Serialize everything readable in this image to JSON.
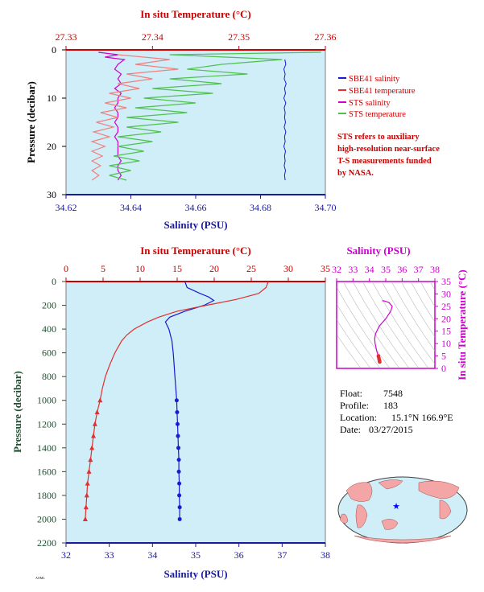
{
  "colors": {
    "plot_bg": "#cfeef8",
    "sbe_salinity": "#1a1ad0",
    "sbe_temperature": "#e03030",
    "sts_salinity": "#d000d0",
    "sts_temperature": "#50c050",
    "sts_temp_pink": "#f08080",
    "axis_red": "#cc0000",
    "axis_blue": "#1a1aa0",
    "axis_green": "#1f4f2f",
    "axis_magenta": "#cc00cc"
  },
  "chart_data": [
    {
      "id": "top",
      "type": "line",
      "top_axis_title": "In situ Temperature (°C)",
      "top_ticks": [
        "27.33",
        "27.34",
        "27.35",
        "27.36"
      ],
      "top_range": [
        27.33,
        27.36
      ],
      "bottom_axis_title": "Salinity (PSU)",
      "bottom_ticks": [
        "34.62",
        "34.64",
        "34.66",
        "34.68",
        "34.70"
      ],
      "bottom_range": [
        34.62,
        34.7
      ],
      "left_axis_title": "Pressure (decibar)",
      "left_ticks": [
        "0",
        "10",
        "20",
        "30"
      ],
      "left_range": [
        0,
        30
      ],
      "legend": [
        {
          "label": "SBE41 salinity",
          "color": "#1a1ad0"
        },
        {
          "label": "SBE41 temperature",
          "color": "#e03030"
        },
        {
          "label": "STS salinity",
          "color": "#d000d0"
        },
        {
          "label": "STS temperature",
          "color": "#50c050"
        }
      ],
      "note_lines": [
        "STS refers to auxiliary",
        "high-resolution near-surface",
        "T-S measurements funded",
        "by NASA."
      ],
      "series": [
        {
          "name": "SBE41 salinity",
          "axis": "salinity",
          "pressure": [
            2,
            3,
            4,
            5,
            6,
            7,
            8,
            9,
            10,
            11,
            12,
            13,
            14,
            15,
            16,
            17,
            18,
            19,
            20,
            21,
            22,
            23,
            24,
            25,
            26,
            27
          ],
          "values": [
            34.6875,
            34.6878,
            34.6872,
            34.6876,
            34.6873,
            34.6879,
            34.6874,
            34.6877,
            34.6872,
            34.6878,
            34.6873,
            34.6876,
            34.6874,
            34.6877,
            34.6873,
            34.6878,
            34.6874,
            34.6876,
            34.6872,
            34.6877,
            34.6874,
            34.6876,
            34.6873,
            34.6877,
            34.6874,
            34.6876
          ]
        },
        {
          "name": "STS salinity",
          "axis": "salinity",
          "pressure": [
            0.5,
            1,
            1.5,
            2,
            3,
            4,
            5,
            6,
            7,
            8,
            9,
            10,
            11,
            12,
            13,
            14,
            15,
            16,
            17,
            18,
            19,
            20,
            21,
            22,
            23,
            24,
            25,
            26,
            27
          ],
          "values": [
            34.63,
            34.636,
            34.632,
            34.638,
            34.636,
            34.635,
            34.637,
            34.636,
            34.637,
            34.635,
            34.637,
            34.636,
            34.636,
            34.635,
            34.636,
            34.636,
            34.635,
            34.636,
            34.636,
            34.635,
            34.636,
            34.636,
            34.636,
            34.636,
            34.637,
            34.636,
            34.636,
            34.637,
            34.636
          ]
        },
        {
          "name": "STS temperature",
          "axis": "temperature",
          "pressure": [
            0.5,
            1,
            2,
            3,
            4,
            5,
            6,
            7,
            8,
            9,
            10,
            11,
            12,
            13,
            14,
            15,
            16,
            17,
            18,
            19,
            20,
            21,
            22,
            23,
            24,
            25,
            26,
            27
          ],
          "values": [
            27.3595,
            27.342,
            27.355,
            27.348,
            27.344,
            27.351,
            27.342,
            27.348,
            27.34,
            27.347,
            27.339,
            27.345,
            27.338,
            27.344,
            27.337,
            27.343,
            27.337,
            27.341,
            27.336,
            27.34,
            27.336,
            27.339,
            27.3355,
            27.3385,
            27.335,
            27.3375,
            27.335,
            27.337
          ]
        },
        {
          "name": "STS temperature (pink)",
          "axis": "temperature",
          "pressure": [
            1,
            2,
            3,
            4,
            5,
            6,
            7,
            8,
            9,
            10,
            11,
            12,
            13,
            14,
            15,
            16,
            17,
            18,
            19,
            20,
            21,
            22,
            23,
            24,
            25,
            26,
            27
          ],
          "values": [
            27.336,
            27.342,
            27.338,
            27.343,
            27.337,
            27.34,
            27.336,
            27.3385,
            27.335,
            27.3375,
            27.3345,
            27.337,
            27.334,
            27.336,
            27.3335,
            27.3355,
            27.3332,
            27.335,
            27.333,
            27.3345,
            27.333,
            27.3342,
            27.333,
            27.334,
            27.333,
            27.3338,
            27.333
          ]
        }
      ]
    },
    {
      "id": "main",
      "type": "line",
      "top_axis_title": "In situ Temperature (°C)",
      "top_ticks": [
        "0",
        "5",
        "10",
        "15",
        "20",
        "25",
        "30",
        "35"
      ],
      "top_range": [
        0,
        35
      ],
      "bottom_axis_title": "Salinity (PSU)",
      "bottom_ticks": [
        "32",
        "33",
        "34",
        "35",
        "36",
        "37",
        "38"
      ],
      "bottom_range": [
        32,
        38
      ],
      "left_axis_title": "Pressure (decibar)",
      "left_ticks": [
        "0",
        "200",
        "400",
        "600",
        "800",
        "1000",
        "1200",
        "1400",
        "1600",
        "1800",
        "2000",
        "2200"
      ],
      "left_range": [
        0,
        2200
      ],
      "series": [
        {
          "name": "SBE41 salinity",
          "axis": "salinity",
          "pressure": [
            0,
            50,
            100,
            130,
            160,
            200,
            250,
            300,
            340,
            400,
            500,
            600,
            700,
            800,
            900,
            1000,
            1100,
            1200,
            1300,
            1400,
            1500,
            1600,
            1700,
            1800,
            1900,
            2000
          ],
          "values": [
            34.75,
            34.8,
            35.1,
            35.3,
            35.42,
            35.2,
            34.75,
            34.4,
            34.3,
            34.38,
            34.45,
            34.48,
            34.5,
            34.52,
            34.54,
            34.56,
            34.57,
            34.58,
            34.59,
            34.6,
            34.61,
            34.61,
            34.62,
            34.62,
            34.63,
            34.63
          ]
        },
        {
          "name": "SBE41 temperature",
          "axis": "temperature",
          "pressure": [
            0,
            50,
            100,
            150,
            200,
            250,
            300,
            340,
            400,
            450,
            500,
            600,
            700,
            800,
            900,
            1000,
            1100,
            1200,
            1300,
            1400,
            1500,
            1600,
            1700,
            1800,
            1900,
            2000
          ],
          "values": [
            27.3,
            27.0,
            26.0,
            23.0,
            19.0,
            15.0,
            12.5,
            11.0,
            9.2,
            8.2,
            7.5,
            6.6,
            5.9,
            5.3,
            4.9,
            4.6,
            4.2,
            3.9,
            3.7,
            3.5,
            3.3,
            3.1,
            2.9,
            2.8,
            2.7,
            2.6
          ]
        }
      ],
      "marker_start_pressure": 1000
    },
    {
      "id": "ts",
      "type": "line",
      "top_axis_title": "Salinity (PSU)",
      "top_ticks": [
        "32",
        "33",
        "34",
        "35",
        "36",
        "37",
        "38"
      ],
      "top_range": [
        32,
        38
      ],
      "right_axis_title": "In situ Temperature (°C)",
      "right_ticks": [
        "0",
        "5",
        "10",
        "15",
        "20",
        "25",
        "30",
        "35"
      ],
      "right_range": [
        0,
        35
      ],
      "series": [
        {
          "name": "T-S",
          "salinity": [
            34.63,
            34.62,
            34.6,
            34.58,
            34.55,
            34.5,
            34.45,
            34.4,
            34.35,
            34.32,
            34.38,
            34.6,
            35.0,
            35.3,
            35.4,
            35.2,
            34.9,
            34.78
          ],
          "temperature": [
            2.6,
            3.0,
            3.5,
            4.2,
            5.0,
            6.0,
            7.0,
            8.5,
            10.0,
            12.0,
            14.0,
            17.0,
            20.0,
            23.0,
            25.0,
            26.5,
            27.2,
            27.3
          ]
        }
      ]
    }
  ],
  "info": {
    "float_label": "Float:",
    "float_value": "7548",
    "profile_label": "Profile:",
    "profile_value": "183",
    "location_label": "Location:",
    "location_value": "15.1°N  166.9°E",
    "date_label": "Date:",
    "date_value": "03/27/2015"
  },
  "map": {
    "marker_color": "#0000ff"
  }
}
